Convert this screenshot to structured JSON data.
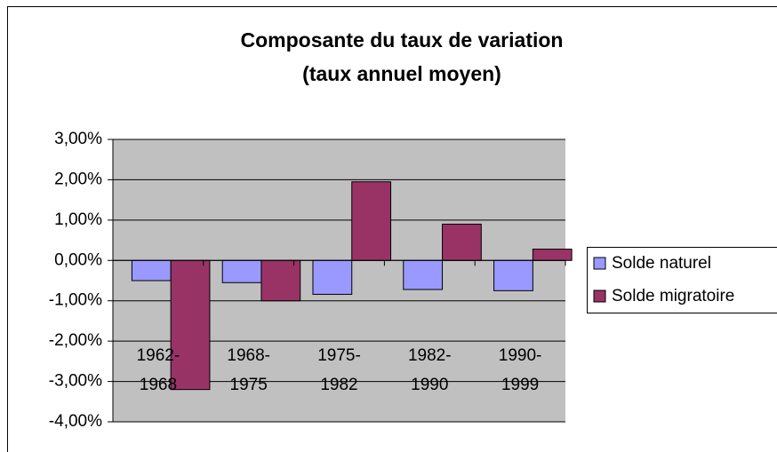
{
  "chart_data": {
    "type": "bar",
    "title": [
      "Composante du taux de variation",
      "(taux annuel moyen)"
    ],
    "categories": [
      [
        "1962-",
        "1968"
      ],
      [
        "1968-",
        "1975"
      ],
      [
        "1975-",
        "1982"
      ],
      [
        "1982-",
        "1990"
      ],
      [
        "1990-",
        "1999"
      ]
    ],
    "series": [
      {
        "name": "Solde naturel",
        "color": "#9999ff",
        "values": [
          -0.5,
          -0.55,
          -0.84,
          -0.72,
          -0.75
        ]
      },
      {
        "name": "Solde migratoire",
        "color": "#993366",
        "values": [
          -3.2,
          -1.0,
          1.95,
          0.9,
          0.28
        ]
      }
    ],
    "ylim": [
      -4,
      3
    ],
    "yticks": [
      {
        "value": -4,
        "label": "-4,00%"
      },
      {
        "value": -3,
        "label": "-3,00%"
      },
      {
        "value": -2,
        "label": "-2,00%"
      },
      {
        "value": -1,
        "label": "-1,00%"
      },
      {
        "value": 0,
        "label": "0,00%"
      },
      {
        "value": 1,
        "label": "1,00%"
      },
      {
        "value": 2,
        "label": "2,00%"
      },
      {
        "value": 3,
        "label": "3,00%"
      }
    ],
    "grid": true,
    "legend": "right"
  }
}
